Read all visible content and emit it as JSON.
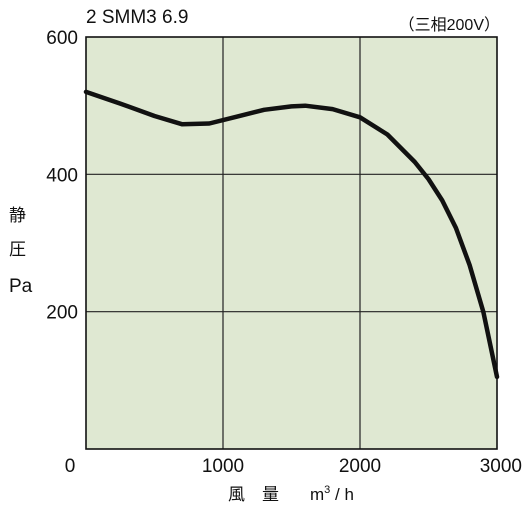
{
  "chart_data": {
    "type": "line",
    "title": "2 SMM3 6.9",
    "note": "（三相200V）",
    "ylabel_chars": [
      "静",
      "圧"
    ],
    "ylabel_unit": "Pa",
    "xlabel_chars": [
      "風",
      "量"
    ],
    "xlabel_unit_base": "m",
    "xlabel_unit_sup": "3",
    "xlabel_unit_tail": " / h",
    "xlim": [
      0,
      3000
    ],
    "ylim": [
      0,
      600
    ],
    "x_ticks": [
      "0",
      "1000",
      "2000",
      "3000"
    ],
    "y_ticks": [
      "200",
      "400",
      "600"
    ],
    "grid": true,
    "background_color": "#dfe8d2",
    "line_color": "#111111",
    "series": [
      {
        "x": [
          0,
          250,
          500,
          700,
          900,
          1100,
          1300,
          1500,
          1600,
          1800,
          2000,
          2200,
          2400,
          2500,
          2600,
          2700,
          2800,
          2900,
          3000
        ],
        "y": [
          520,
          503,
          485,
          473,
          474,
          484,
          494,
          499,
          500,
          495,
          483,
          458,
          418,
          393,
          362,
          322,
          268,
          200,
          105
        ]
      }
    ]
  }
}
